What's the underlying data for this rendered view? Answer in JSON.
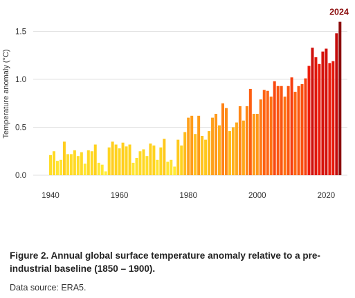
{
  "chart_data": {
    "type": "bar",
    "title": "",
    "xlabel": "",
    "ylabel": "Temperature anomaly (°C)",
    "ylim": [
      0.0,
      1.6
    ],
    "yticks": [
      "0.0",
      "0.5",
      "1.0",
      "1.5"
    ],
    "xticks": [
      "1940",
      "1960",
      "1980",
      "2000",
      "2020"
    ],
    "grid": "horizontal",
    "highlight": {
      "year": 2024,
      "label": "2024",
      "color": "#8b0c0c"
    },
    "color_scale": [
      "#ffee3a",
      "#ffd21e",
      "#ffa21a",
      "#ff6a12",
      "#f01e0c",
      "#c40a0a"
    ],
    "x": [
      1940,
      1941,
      1942,
      1943,
      1944,
      1945,
      1946,
      1947,
      1948,
      1949,
      1950,
      1951,
      1952,
      1953,
      1954,
      1955,
      1956,
      1957,
      1958,
      1959,
      1960,
      1961,
      1962,
      1963,
      1964,
      1965,
      1966,
      1967,
      1968,
      1969,
      1970,
      1971,
      1972,
      1973,
      1974,
      1975,
      1976,
      1977,
      1978,
      1979,
      1980,
      1981,
      1982,
      1983,
      1984,
      1985,
      1986,
      1987,
      1988,
      1989,
      1990,
      1991,
      1992,
      1993,
      1994,
      1995,
      1996,
      1997,
      1998,
      1999,
      2000,
      2001,
      2002,
      2003,
      2004,
      2005,
      2006,
      2007,
      2008,
      2009,
      2010,
      2011,
      2012,
      2013,
      2014,
      2015,
      2016,
      2017,
      2018,
      2019,
      2020,
      2021,
      2022,
      2023,
      2024
    ],
    "values": [
      0.21,
      0.25,
      0.15,
      0.16,
      0.35,
      0.22,
      0.22,
      0.26,
      0.2,
      0.24,
      0.12,
      0.26,
      0.25,
      0.32,
      0.13,
      0.11,
      0.04,
      0.29,
      0.35,
      0.32,
      0.28,
      0.34,
      0.3,
      0.32,
      0.13,
      0.18,
      0.25,
      0.27,
      0.2,
      0.33,
      0.31,
      0.16,
      0.29,
      0.38,
      0.14,
      0.16,
      0.09,
      0.37,
      0.31,
      0.45,
      0.6,
      0.62,
      0.43,
      0.62,
      0.41,
      0.37,
      0.46,
      0.6,
      0.64,
      0.52,
      0.75,
      0.7,
      0.46,
      0.5,
      0.55,
      0.72,
      0.57,
      0.72,
      0.9,
      0.64,
      0.64,
      0.79,
      0.89,
      0.88,
      0.82,
      0.98,
      0.93,
      0.93,
      0.82,
      0.93,
      1.02,
      0.87,
      0.93,
      0.95,
      1.01,
      1.14,
      1.33,
      1.23,
      1.16,
      1.29,
      1.32,
      1.17,
      1.19,
      1.48,
      1.6
    ]
  },
  "caption": "Figure 2. Annual global surface temperature anomaly relative to a pre-industrial baseline (1850 – 1900).",
  "source": "Data source: ERA5."
}
